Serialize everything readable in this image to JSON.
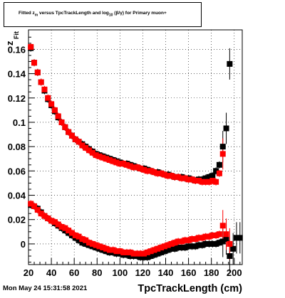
{
  "title_parts": {
    "pre": "Fitted  z",
    "sub1": "m",
    "mid": "  versus  TpcTrackLength and log",
    "sub2": "10",
    "post": " (β/γ) for Primary muon+"
  },
  "timestamp": "Mon May 24 15:31:58 2021",
  "chart_data": {
    "type": "scatter",
    "title": "Fitted z_m versus TpcTrackLength and log10(β/γ) for Primary muon+",
    "xlabel": "TpcTrackLength (cm)",
    "ylabel": "z_Fit",
    "xlim": [
      20,
      207
    ],
    "ylim": [
      -0.017,
      0.176
    ],
    "grid": true,
    "x_ticks": [
      20,
      40,
      60,
      80,
      100,
      120,
      140,
      160,
      180,
      200
    ],
    "x_tick_labels": [
      "20",
      "40",
      "60",
      "80",
      "100",
      "120",
      "140",
      "160",
      "180",
      "200"
    ],
    "y_ticks": [
      0,
      0.02,
      0.04,
      0.06,
      0.08,
      0.1,
      0.12,
      0.14,
      0.16
    ],
    "y_tick_labels": [
      "0",
      "0.02",
      "0.04",
      "0.06",
      "0.08",
      "0.1",
      "0.12",
      "0.14",
      "0.16"
    ],
    "series": [
      {
        "color": "#000000",
        "x": [
          22,
          25,
          28,
          31,
          34,
          37,
          40,
          43,
          46,
          49,
          52,
          55,
          58,
          61,
          64,
          67,
          70,
          73,
          76,
          79,
          82,
          85,
          88,
          91,
          94,
          97,
          100,
          103,
          106,
          109,
          112,
          115,
          118,
          121,
          124,
          127,
          130,
          133,
          136,
          139,
          142,
          145,
          148,
          151,
          154,
          157,
          160,
          163,
          166,
          169,
          172,
          175,
          178,
          181,
          184,
          187,
          190,
          193,
          196,
          199,
          202,
          205
        ],
        "y": [
          0.161,
          0.149,
          0.141,
          0.133,
          0.126,
          0.119,
          0.114,
          0.109,
          0.104,
          0.1,
          0.096,
          0.092,
          0.089,
          0.086,
          0.084,
          0.082,
          0.08,
          0.078,
          0.076,
          0.074,
          0.073,
          0.072,
          0.071,
          0.07,
          0.069,
          0.068,
          0.067,
          0.066,
          0.066,
          0.065,
          0.064,
          0.063,
          0.062,
          0.062,
          0.061,
          0.06,
          0.059,
          0.059,
          0.058,
          0.057,
          0.057,
          0.056,
          0.055,
          0.055,
          0.055,
          0.054,
          0.054,
          0.053,
          0.052,
          0.053,
          0.053,
          0.054,
          0.055,
          0.056,
          0.06,
          0.065,
          0.08,
          0.095,
          0.148,
          0,
          0,
          0
        ],
        "y_low": [
          0.032,
          0.031,
          0.029,
          0.026,
          0.023,
          0.021,
          0.019,
          0.017,
          0.015,
          0.013,
          0.011,
          0.009,
          0.007,
          0.005,
          0.003,
          0.001,
          0.0,
          -0.001,
          -0.002,
          -0.003,
          -0.004,
          -0.005,
          -0.006,
          -0.007,
          -0.007,
          -0.008,
          -0.008,
          -0.009,
          -0.009,
          -0.01,
          -0.01,
          -0.01,
          -0.011,
          -0.011,
          -0.011,
          -0.01,
          -0.009,
          -0.008,
          -0.007,
          -0.006,
          -0.005,
          -0.004,
          -0.004,
          -0.003,
          -0.003,
          -0.003,
          -0.002,
          -0.002,
          -0.002,
          -0.001,
          -0.001,
          0.0,
          0.0,
          0.0,
          0.0,
          0.001,
          0.002,
          0.004,
          -0.01,
          -0.004,
          0.005,
          0.005
        ]
      },
      {
        "color": "#ff0000",
        "x": [
          22,
          25,
          28,
          31,
          34,
          37,
          40,
          43,
          46,
          49,
          52,
          55,
          58,
          61,
          64,
          67,
          70,
          73,
          76,
          79,
          82,
          85,
          88,
          91,
          94,
          97,
          100,
          103,
          106,
          109,
          112,
          115,
          118,
          121,
          124,
          127,
          130,
          133,
          136,
          139,
          142,
          145,
          148,
          151,
          154,
          157,
          160,
          163,
          166,
          169,
          172,
          175,
          178,
          181,
          184,
          187,
          190,
          193,
          196
        ],
        "y": [
          0.162,
          0.149,
          0.141,
          0.133,
          0.127,
          0.12,
          0.115,
          0.11,
          0.105,
          0.1,
          0.096,
          0.092,
          0.089,
          0.086,
          0.084,
          0.081,
          0.079,
          0.077,
          0.075,
          0.073,
          0.072,
          0.071,
          0.07,
          0.069,
          0.068,
          0.067,
          0.066,
          0.066,
          0.065,
          0.064,
          0.063,
          0.063,
          0.062,
          0.061,
          0.06,
          0.06,
          0.059,
          0.058,
          0.058,
          0.057,
          0.056,
          0.056,
          0.055,
          0.055,
          0.054,
          0.054,
          0.053,
          0.053,
          0.052,
          0.052,
          0.051,
          0.051,
          0.051,
          0.052,
          0.051,
          0.058,
          0.074,
          0,
          0
        ],
        "y_low": [
          0.033,
          0.031,
          0.028,
          0.025,
          0.023,
          0.021,
          0.019,
          0.018,
          0.016,
          0.014,
          0.013,
          0.011,
          0.009,
          0.007,
          0.006,
          0.004,
          0.003,
          0.001,
          0.0,
          -0.001,
          -0.002,
          -0.003,
          -0.004,
          -0.005,
          -0.005,
          -0.006,
          -0.006,
          -0.007,
          -0.007,
          -0.007,
          -0.008,
          -0.008,
          -0.008,
          -0.008,
          -0.007,
          -0.006,
          -0.005,
          -0.004,
          -0.003,
          -0.002,
          -0.001,
          0.0,
          0.001,
          0.002,
          0.002,
          0.003,
          0.003,
          0.004,
          0.004,
          0.005,
          0.005,
          0.006,
          0.006,
          0.007,
          0.007,
          0.008,
          0.015,
          0.008,
          0.0
        ]
      }
    ]
  }
}
